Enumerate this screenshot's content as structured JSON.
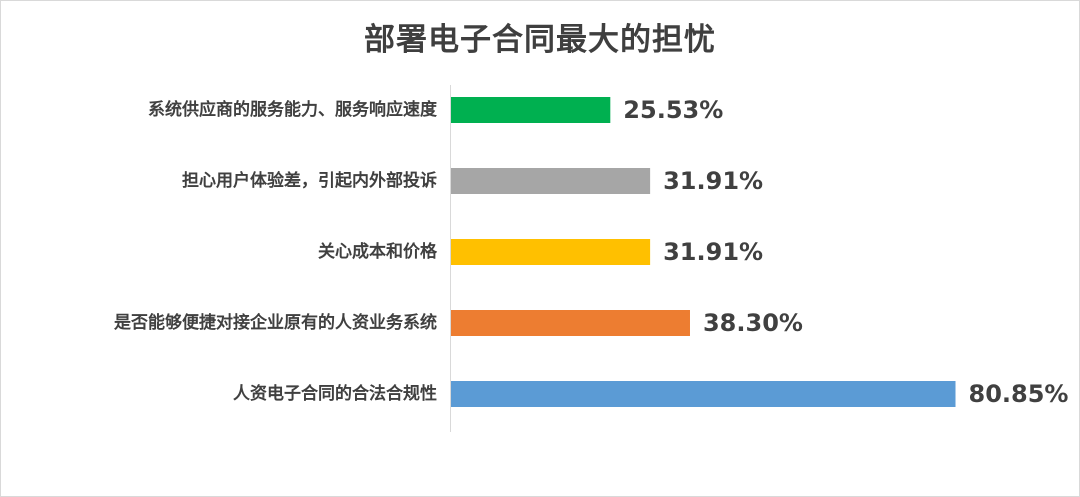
{
  "chart_data": {
    "type": "bar",
    "orientation": "horizontal",
    "title": "部署电子合同最大的担忧",
    "xlabel": "",
    "ylabel": "",
    "xlim": [
      0,
      100
    ],
    "grid": false,
    "legend": "none",
    "categories": [
      "系统供应商的服务能力、服务响应速度",
      "担心用户体验差，引起内外部投诉",
      "关心成本和价格",
      "是否能够便捷对接企业原有的人资业务系统",
      "人资电子合同的合法合规性"
    ],
    "values": [
      25.53,
      31.91,
      31.91,
      38.3,
      80.85
    ],
    "value_labels": [
      "25.53%",
      "31.91%",
      "31.91%",
      "38.30%",
      "80.85%"
    ],
    "colors": [
      "#00b050",
      "#a6a6a6",
      "#ffc000",
      "#ed7d31",
      "#5b9bd5"
    ]
  }
}
